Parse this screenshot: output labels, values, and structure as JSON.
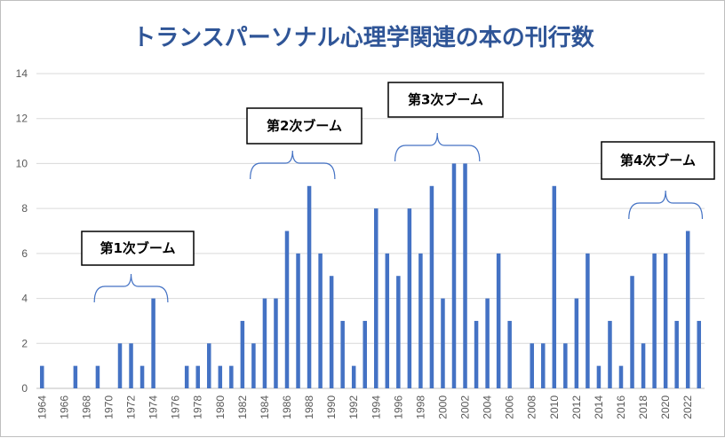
{
  "chart_data": {
    "type": "bar",
    "title": "トランスパーソナル心理学関連の本の刊行数",
    "xlabel": "",
    "ylabel": "",
    "ylim": [
      0,
      14
    ],
    "yticks": [
      0,
      2,
      4,
      6,
      8,
      10,
      12,
      14
    ],
    "grid": true,
    "legend": "none",
    "bar_color": "#4472c4",
    "title_color": "#2f5597",
    "x": [
      1964,
      1965,
      1966,
      1967,
      1968,
      1969,
      1970,
      1971,
      1972,
      1973,
      1974,
      1975,
      1976,
      1977,
      1978,
      1979,
      1980,
      1981,
      1982,
      1983,
      1984,
      1985,
      1986,
      1987,
      1988,
      1989,
      1990,
      1991,
      1992,
      1993,
      1994,
      1995,
      1996,
      1997,
      1998,
      1999,
      2000,
      2001,
      2002,
      2003,
      2004,
      2005,
      2006,
      2007,
      2008,
      2009,
      2010,
      2011,
      2012,
      2013,
      2014,
      2015,
      2016,
      2017,
      2018,
      2019,
      2020,
      2021,
      2022,
      2023
    ],
    "x_tick_labels": [
      "1964",
      "1966",
      "1968",
      "1970",
      "1972",
      "1974",
      "1976",
      "1978",
      "1980",
      "1982",
      "1984",
      "1986",
      "1988",
      "1990",
      "1992",
      "1994",
      "1996",
      "1998",
      "2000",
      "2002",
      "2004",
      "2006",
      "2008",
      "2010",
      "2012",
      "2014",
      "2016",
      "2018",
      "2020",
      "2022"
    ],
    "values": [
      1,
      0,
      0,
      1,
      0,
      1,
      0,
      2,
      2,
      1,
      4,
      0,
      0,
      1,
      1,
      2,
      1,
      1,
      3,
      2,
      4,
      4,
      7,
      6,
      9,
      6,
      5,
      3,
      1,
      3,
      8,
      6,
      5,
      8,
      6,
      9,
      4,
      10,
      10,
      3,
      4,
      6,
      3,
      0,
      2,
      2,
      9,
      2,
      4,
      6,
      1,
      3,
      1,
      5,
      2,
      6,
      6,
      3,
      7,
      3
    ],
    "annotations": [
      {
        "label": "第1次ブーム",
        "from": 1969,
        "to": 1975
      },
      {
        "label": "第2次ブーム",
        "from": 1983,
        "to": 1990
      },
      {
        "label": "第3次ブーム",
        "from": 1996,
        "to": 2003
      },
      {
        "label": "第4次ブーム",
        "from": 2017,
        "to": 2023
      }
    ]
  }
}
